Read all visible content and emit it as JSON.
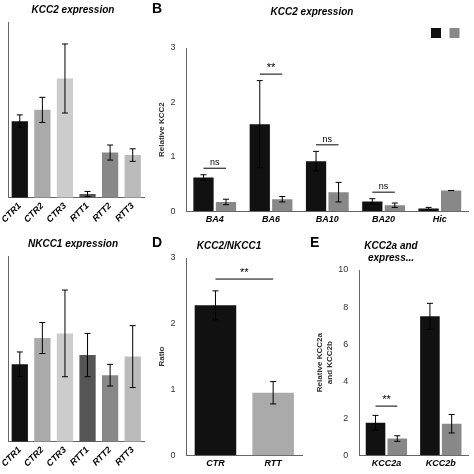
{
  "chart_data": [
    {
      "type": "bar",
      "title": "KCC2 expression",
      "categories": [
        "CTR1",
        "CTR2",
        "CTR3",
        "RTT1",
        "RTT2",
        "RTT3"
      ],
      "values": [
        1.22,
        1.4,
        1.9,
        0.06,
        0.72,
        0.68
      ],
      "errors": [
        0.1,
        0.2,
        0.55,
        0.04,
        0.12,
        0.1
      ],
      "colors": [
        "#111111",
        "#aaaaaa",
        "#cccccc",
        "#555555",
        "#888888",
        "#bbbbbb"
      ],
      "ylim": [
        0,
        2.8
      ],
      "tick_labels": "x",
      "grid": false
    },
    {
      "type": "bar",
      "title": "KCC2 expression",
      "ylabel": "Relative KCC2",
      "categories": [
        "BA4",
        "BA6",
        "BA10",
        "BA20",
        "Hic"
      ],
      "series": [
        {
          "color": "#111111",
          "values": [
            0.62,
            1.6,
            0.92,
            0.18,
            0.05
          ],
          "errors": [
            0.05,
            0.8,
            0.18,
            0.05,
            0.02
          ]
        },
        {
          "color": "#888888",
          "values": [
            0.17,
            0.22,
            0.35,
            0.11,
            0.38
          ],
          "errors": [
            0.05,
            0.05,
            0.18,
            0.04,
            0.0
          ]
        }
      ],
      "ylim": [
        0,
        3
      ],
      "yticks": [
        0,
        1,
        2,
        3
      ],
      "grid": false,
      "legend": "upper right",
      "annotations": [
        {
          "text": "B"
        },
        {
          "text": "ns",
          "category": "BA4",
          "y": 0.79
        },
        {
          "text": "**",
          "category": "BA6",
          "y": 2.52
        },
        {
          "text": "ns",
          "category": "BA10",
          "y": 1.22
        },
        {
          "text": "ns",
          "category": "BA20",
          "y": 0.35
        }
      ]
    },
    {
      "type": "bar",
      "title": "NKCC1 expression",
      "categories": [
        "CTR1",
        "CTR2",
        "CTR3",
        "RTT1",
        "RTT2",
        "RTT3"
      ],
      "values": [
        0.5,
        0.67,
        0.7,
        0.56,
        0.43,
        0.55
      ],
      "errors": [
        0.08,
        0.1,
        0.28,
        0.14,
        0.07,
        0.2
      ],
      "colors": [
        "#111111",
        "#aaaaaa",
        "#cccccc",
        "#555555",
        "#888888",
        "#bbbbbb"
      ],
      "ylim": [
        0,
        1.2
      ],
      "tick_labels": "x",
      "grid": false
    },
    {
      "type": "bar",
      "title": "KCC2/NKCC1",
      "ylabel": "Ratio",
      "categories": [
        "CTR",
        "RTT"
      ],
      "values": [
        2.28,
        0.95
      ],
      "errors": [
        0.22,
        0.17
      ],
      "colors": [
        "#111111",
        "#aaaaaa"
      ],
      "ylim": [
        0,
        3
      ],
      "yticks": [
        0,
        1,
        2,
        3
      ],
      "grid": false,
      "annotations": [
        {
          "text": "D"
        },
        {
          "text": "**",
          "from": "CTR",
          "to": "RTT",
          "y": 2.68
        }
      ]
    },
    {
      "type": "bar",
      "title": "KCC2a and\nexpress...",
      "ylabel": "Relative KCC2a\nand KCC2b",
      "categories": [
        "KCC2a",
        "KCC2b"
      ],
      "series": [
        {
          "color": "#111111",
          "values": [
            1.75,
            7.5
          ],
          "errors": [
            0.4,
            0.7
          ]
        },
        {
          "color": "#888888",
          "values": [
            0.9,
            1.7
          ],
          "errors": [
            0.15,
            0.5
          ]
        }
      ],
      "ylim": [
        0,
        10
      ],
      "yticks": [
        0,
        2,
        4,
        6,
        8,
        10
      ],
      "grid": false,
      "annotations": [
        {
          "text": "E"
        },
        {
          "text": "**",
          "category": "KCC2a",
          "y": 2.65
        }
      ]
    }
  ]
}
